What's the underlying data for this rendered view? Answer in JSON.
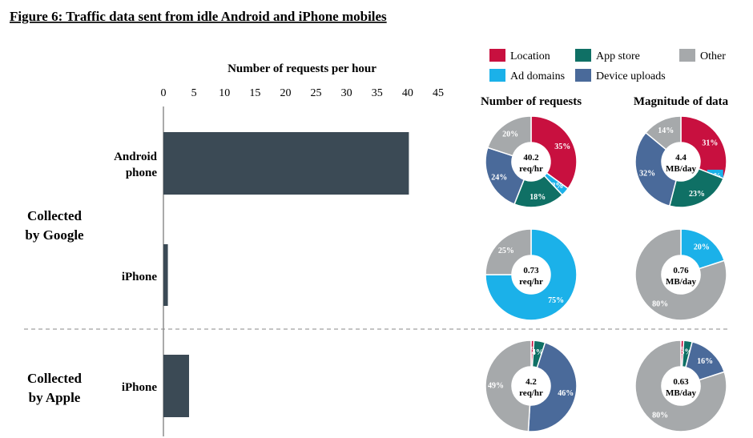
{
  "title": "Figure 6: Traffic data sent from idle Android and iPhone mobiles",
  "colors": {
    "location": "#c8103f",
    "app_store": "#0f7065",
    "other": "#a6a9ab",
    "ad_domains": "#1bb1e9",
    "device_uploads": "#4a6a9a",
    "bar": "#3b4a55"
  },
  "legend": [
    {
      "key": "location",
      "label": "Location"
    },
    {
      "key": "app_store",
      "label": "App store"
    },
    {
      "key": "other",
      "label": "Other"
    },
    {
      "key": "ad_domains",
      "label": "Ad domains"
    },
    {
      "key": "device_uploads",
      "label": "Device uploads"
    }
  ],
  "groups": {
    "google": "Collected\nby Google",
    "apple": "Collected\nby Apple"
  },
  "chart_data": [
    {
      "type": "bar",
      "orientation": "horizontal",
      "title": "Number of requests per hour",
      "categories": [
        "Android\nphone",
        "iPhone",
        "iPhone"
      ],
      "values": [
        40.2,
        0.73,
        4.2
      ],
      "xlim": [
        0,
        45
      ],
      "ticks": [
        0,
        5,
        10,
        15,
        20,
        25,
        30,
        35,
        40,
        45
      ]
    },
    {
      "type": "pie",
      "title": "Number of requests",
      "charts": [
        {
          "center": "40.2\nreq/hr",
          "slices": [
            {
              "key": "location",
              "value": 35,
              "label": "35%"
            },
            {
              "key": "ad_domains",
              "value": 3,
              "label": "3%"
            },
            {
              "key": "app_store",
              "value": 18,
              "label": "18%"
            },
            {
              "key": "device_uploads",
              "value": 24,
              "label": "24%"
            },
            {
              "key": "other",
              "value": 20,
              "label": "20%"
            }
          ]
        },
        {
          "center": "0.73\nreq/hr",
          "slices": [
            {
              "key": "ad_domains",
              "value": 75,
              "label": "75%"
            },
            {
              "key": "other",
              "value": 25,
              "label": "25%"
            }
          ]
        },
        {
          "center": "4.2\nreq/hr",
          "slices": [
            {
              "key": "location",
              "value": 1,
              "label": "1%"
            },
            {
              "key": "app_store",
              "value": 4,
              "label": "4%"
            },
            {
              "key": "device_uploads",
              "value": 46,
              "label": "46%"
            },
            {
              "key": "other",
              "value": 49,
              "label": "49%"
            }
          ]
        }
      ]
    },
    {
      "type": "pie",
      "title": "Magnitude of data",
      "charts": [
        {
          "center": "4.4\nMB/day",
          "slices": [
            {
              "key": "location",
              "value": 31,
              "label": "31%"
            },
            {
              "key": "ad_domains",
              "value": 0,
              "label": "0%"
            },
            {
              "key": "app_store",
              "value": 23,
              "label": "23%"
            },
            {
              "key": "device_uploads",
              "value": 32,
              "label": "32%"
            },
            {
              "key": "other",
              "value": 14,
              "label": "14%"
            }
          ]
        },
        {
          "center": "0.76\nMB/day",
          "slices": [
            {
              "key": "ad_domains",
              "value": 20,
              "label": "20%"
            },
            {
              "key": "other",
              "value": 80,
              "label": "80%"
            }
          ]
        },
        {
          "center": "0.63\nMB/day",
          "slices": [
            {
              "key": "location",
              "value": 1,
              "label": "1%"
            },
            {
              "key": "app_store",
              "value": 3,
              "label": "3%"
            },
            {
              "key": "device_uploads",
              "value": 16,
              "label": "16%"
            },
            {
              "key": "other",
              "value": 80,
              "label": "80%"
            }
          ]
        }
      ]
    }
  ]
}
